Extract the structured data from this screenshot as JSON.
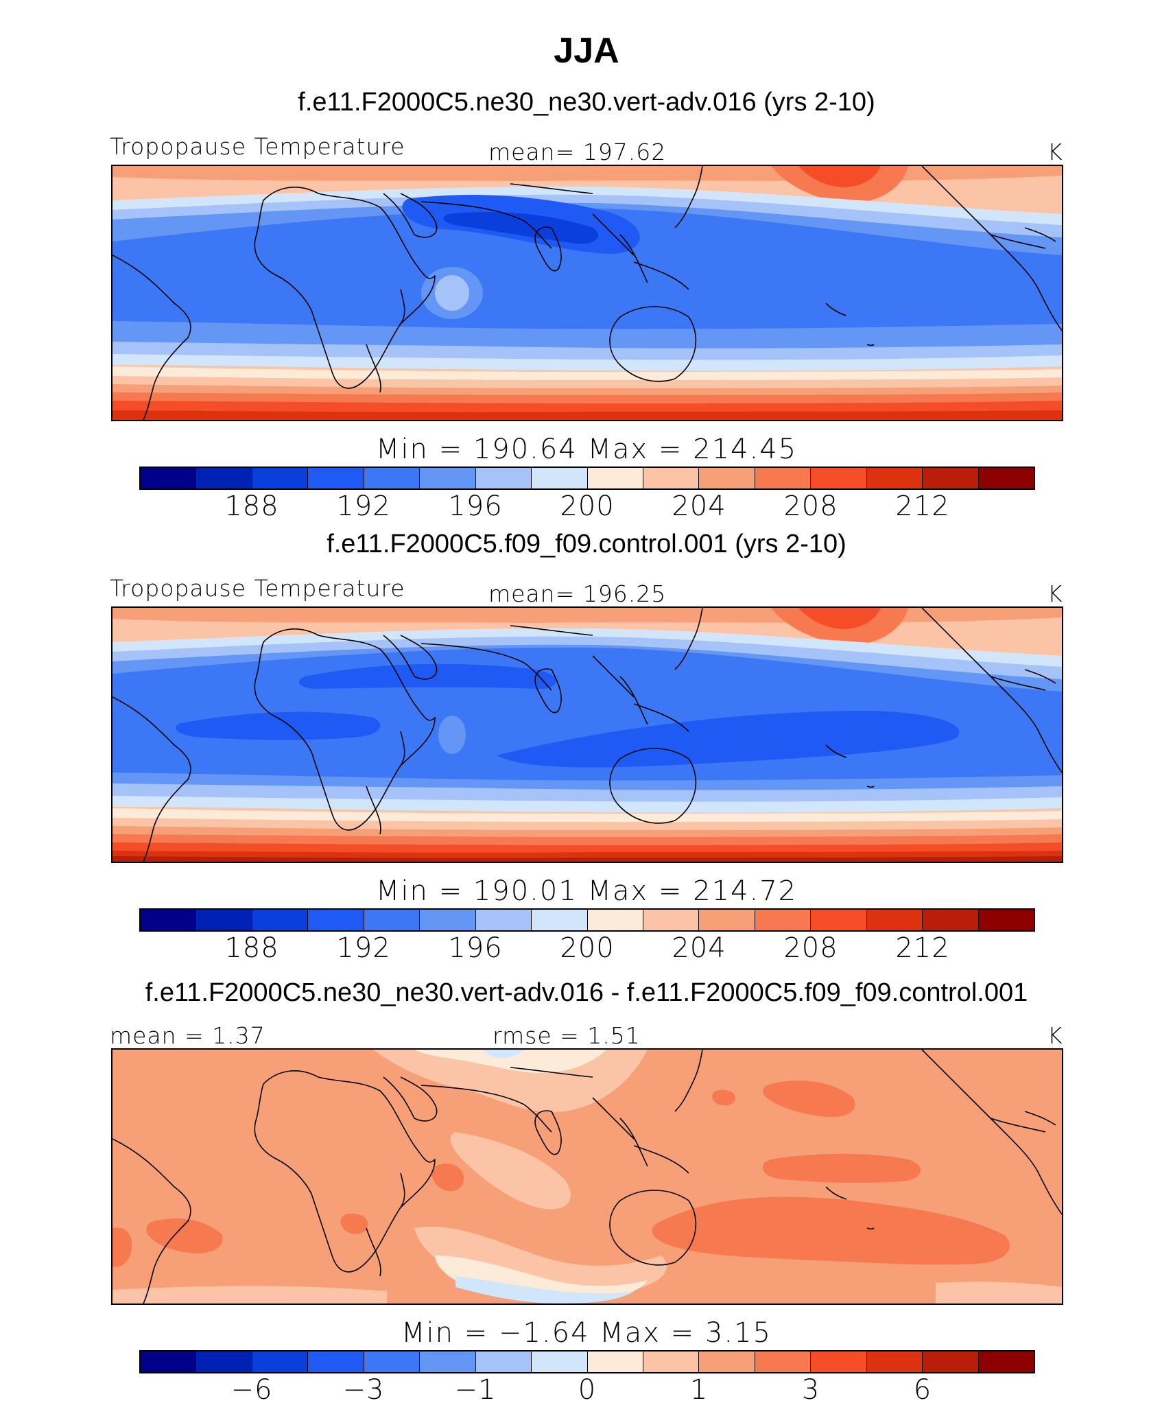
{
  "title": "JJA",
  "panels": [
    {
      "run": "f.e11.F2000C5.ne30_ne30.vert-adv.016 (yrs 2-10)",
      "left_label": "Tropopause  Temperature",
      "center_label": "mean=  197.62",
      "units": "K",
      "minmax": "Min  =  190.64  Max  =  214.45",
      "ticks": [
        "188",
        "192",
        "196",
        "200",
        "204",
        "208",
        "212"
      ]
    },
    {
      "run": "f.e11.F2000C5.f09_f09.control.001 (yrs 2-10)",
      "left_label": "Tropopause  Temperature",
      "center_label": "mean=  196.25",
      "units": "K",
      "minmax": "Min  =  190.01  Max  =  214.72",
      "ticks": [
        "188",
        "192",
        "196",
        "200",
        "204",
        "208",
        "212"
      ]
    },
    {
      "run": "f.e11.F2000C5.ne30_ne30.vert-adv.016 - f.e11.F2000C5.f09_f09.control.001",
      "left_label": "mean  =      1.37",
      "center_label": "rmse  =      1.51",
      "units": "K",
      "minmax": "Min  =    −1.64  Max  =      3.15",
      "ticks": [
        "−6",
        "−3",
        "−1",
        "0",
        "1",
        "3",
        "6"
      ]
    }
  ],
  "colorbar": [
    "#00008b",
    "#0022b4",
    "#0a3fdc",
    "#1f5af5",
    "#3c78f5",
    "#6496f5",
    "#a5c3f8",
    "#d2e6fb",
    "#fdebd9",
    "#fbc4a6",
    "#f7a077",
    "#f7794f",
    "#f44d27",
    "#dc320f",
    "#b91e0a",
    "#8c0000"
  ]
}
